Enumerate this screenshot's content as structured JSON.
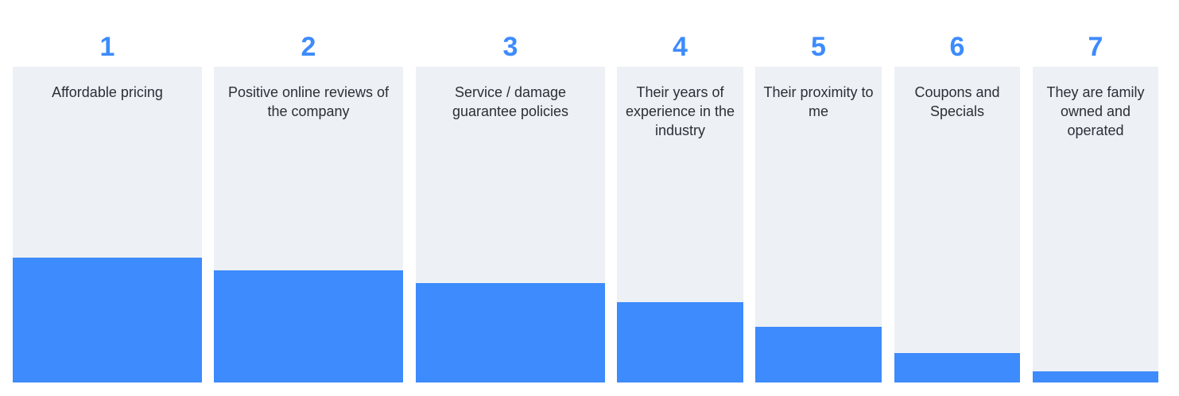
{
  "chart_data": {
    "type": "bar",
    "orientation": "vertical",
    "colors": {
      "fill": "#3d8bfd",
      "track": "#edf0f5",
      "rank_text": "#3d8bfd",
      "label_text": "#2b2f36"
    },
    "items": [
      {
        "rank": "1",
        "label": "Affordable pricing",
        "value": 0.396
      },
      {
        "rank": "2",
        "label": "Positive online reviews of the company",
        "value": 0.355
      },
      {
        "rank": "3",
        "label": "Service / damage guarantee policies",
        "value": 0.315
      },
      {
        "rank": "4",
        "label": "Their years of experience in the industry",
        "value": 0.254
      },
      {
        "rank": "5",
        "label": "Their proximity to me",
        "value": 0.176
      },
      {
        "rank": "6",
        "label": "Coupons and Specials",
        "value": 0.093
      },
      {
        "rank": "7",
        "label": "They are family owned and operated",
        "value": 0.035
      }
    ]
  }
}
